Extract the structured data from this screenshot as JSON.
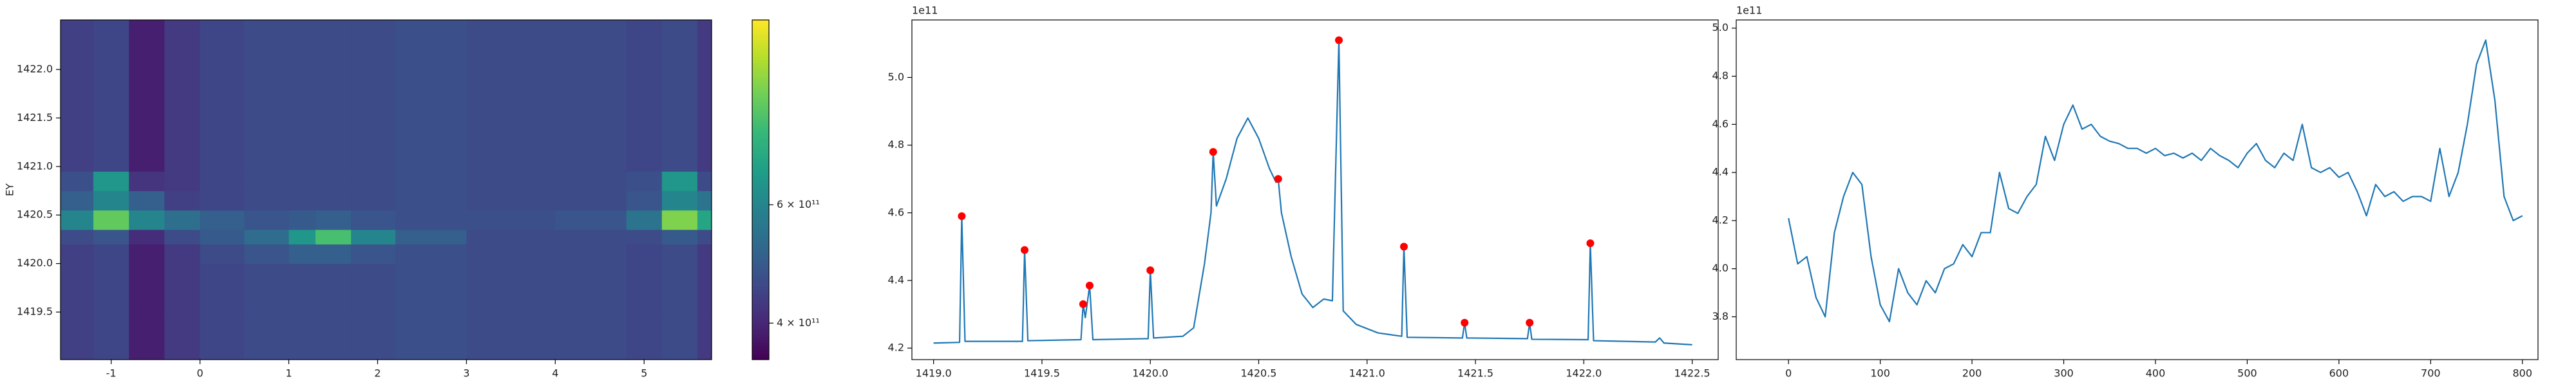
{
  "chart_data": [
    {
      "type": "heatmap",
      "ylabel": "EY",
      "xlim": [
        -1.57,
        5.76
      ],
      "ylim": [
        1419.01,
        1422.51
      ],
      "xticks": [
        -1,
        0,
        1,
        2,
        3,
        4,
        5
      ],
      "yticks": [
        1419.5,
        {
          "value": 1420,
          "label": "1420.0"
        },
        1420.5,
        {
          "value": 1421,
          "label": "1421.0"
        },
        1421.5,
        {
          "value": 1422,
          "label": "1422.0"
        }
      ],
      "x_edges": [
        -1.57,
        -1.2,
        -0.8,
        -0.4,
        0,
        0.5,
        1.0,
        1.3,
        1.7,
        2.2,
        3,
        4,
        4.8,
        5.2,
        5.6,
        5.76
      ],
      "y_edges": [
        1419.01,
        1419.5,
        1420.0,
        1420.2,
        1420.35,
        1420.55,
        1420.75,
        1420.95,
        1421.5,
        1422.0,
        1422.51
      ],
      "z": [
        [
          440000000000.0,
          450000000000.0,
          390000000000.0,
          430000000000.0,
          450000000000.0,
          460000000000.0,
          460000000000.0,
          460000000000.0,
          460000000000.0,
          470000000000.0,
          460000000000.0,
          460000000000.0,
          450000000000.0,
          460000000000.0,
          430000000000.0
        ],
        [
          440000000000.0,
          450000000000.0,
          390000000000.0,
          430000000000.0,
          450000000000.0,
          460000000000.0,
          460000000000.0,
          460000000000.0,
          460000000000.0,
          470000000000.0,
          460000000000.0,
          460000000000.0,
          450000000000.0,
          460000000000.0,
          430000000000.0
        ],
        [
          440000000000.0,
          450000000000.0,
          390000000000.0,
          430000000000.0,
          460000000000.0,
          480000000000.0,
          500000000000.0,
          500000000000.0,
          480000000000.0,
          470000000000.0,
          460000000000.0,
          460000000000.0,
          450000000000.0,
          460000000000.0,
          430000000000.0
        ],
        [
          460000000000.0,
          480000000000.0,
          410000000000.0,
          460000000000.0,
          490000000000.0,
          530000000000.0,
          650000000000.0,
          800000000000.0,
          600000000000.0,
          500000000000.0,
          460000000000.0,
          460000000000.0,
          460000000000.0,
          490000000000.0,
          460000000000.0
        ],
        [
          600000000000.0,
          850000000000.0,
          600000000000.0,
          540000000000.0,
          500000000000.0,
          480000000000.0,
          490000000000.0,
          500000000000.0,
          480000000000.0,
          470000000000.0,
          470000000000.0,
          480000000000.0,
          550000000000.0,
          900000000000.0,
          700000000000.0
        ],
        [
          500000000000.0,
          600000000000.0,
          500000000000.0,
          440000000000.0,
          450000000000.0,
          460000000000.0,
          460000000000.0,
          460000000000.0,
          460000000000.0,
          470000000000.0,
          460000000000.0,
          460000000000.0,
          480000000000.0,
          600000000000.0,
          550000000000.0
        ],
        [
          470000000000.0,
          650000000000.0,
          420000000000.0,
          430000000000.0,
          450000000000.0,
          460000000000.0,
          460000000000.0,
          460000000000.0,
          460000000000.0,
          470000000000.0,
          460000000000.0,
          460000000000.0,
          470000000000.0,
          650000000000.0,
          460000000000.0
        ],
        [
          440000000000.0,
          450000000000.0,
          390000000000.0,
          430000000000.0,
          450000000000.0,
          460000000000.0,
          460000000000.0,
          460000000000.0,
          460000000000.0,
          470000000000.0,
          460000000000.0,
          460000000000.0,
          450000000000.0,
          460000000000.0,
          430000000000.0
        ],
        [
          440000000000.0,
          450000000000.0,
          390000000000.0,
          430000000000.0,
          450000000000.0,
          460000000000.0,
          460000000000.0,
          460000000000.0,
          460000000000.0,
          470000000000.0,
          460000000000.0,
          460000000000.0,
          450000000000.0,
          460000000000.0,
          430000000000.0
        ],
        [
          440000000000.0,
          450000000000.0,
          390000000000.0,
          430000000000.0,
          450000000000.0,
          460000000000.0,
          460000000000.0,
          460000000000.0,
          460000000000.0,
          470000000000.0,
          460000000000.0,
          460000000000.0,
          450000000000.0,
          460000000000.0,
          430000000000.0
        ]
      ],
      "colorbar": {
        "scale": "log",
        "colormap": "viridis",
        "clim": [
          353000000000.0,
          1130000000000.0
        ],
        "ticks": [
          {
            "value": 400000000000.0,
            "label": "4 × 10¹¹"
          },
          {
            "value": 600000000000.0,
            "label": "6 × 10¹¹"
          }
        ]
      }
    },
    {
      "type": "line",
      "offset_label": "1e11",
      "xlim": [
        1418.9,
        1422.62
      ],
      "ylim": [
        4.166,
        5.17
      ],
      "xticks": [
        {
          "value": 1419,
          "label": "1419.0"
        },
        1419.5,
        {
          "value": 1420,
          "label": "1420.0"
        },
        1420.5,
        {
          "value": 1421,
          "label": "1421.0"
        },
        1421.5,
        {
          "value": 1422,
          "label": "1422.0"
        },
        1422.5
      ],
      "yticks": [
        4.2,
        4.4,
        4.6,
        4.8,
        {
          "value": 5,
          "label": "5.0"
        }
      ],
      "series": [
        {
          "mode": "line",
          "color": "#1f77b4",
          "x": [
            1419.0,
            1419.12,
            1419.13,
            1419.145,
            1419.41,
            1419.42,
            1419.435,
            1419.68,
            1419.69,
            1419.7,
            1419.72,
            1419.735,
            1419.99,
            1420.0,
            1420.015,
            1420.15,
            1420.2,
            1420.25,
            1420.28,
            1420.29,
            1420.305,
            1420.35,
            1420.4,
            1420.45,
            1420.5,
            1420.55,
            1420.58,
            1420.59,
            1420.605,
            1420.65,
            1420.7,
            1420.75,
            1420.8,
            1420.84,
            1420.87,
            1420.89,
            1420.95,
            1421.05,
            1421.16,
            1421.17,
            1421.185,
            1421.44,
            1421.45,
            1421.46,
            1421.74,
            1421.75,
            1421.76,
            1422.02,
            1422.03,
            1422.045,
            1422.33,
            1422.35,
            1422.37,
            1422.5
          ],
          "values": [
            4.215,
            4.217,
            4.59,
            4.22,
            4.22,
            4.49,
            4.222,
            4.225,
            4.33,
            4.29,
            4.385,
            4.225,
            4.228,
            4.43,
            4.23,
            4.235,
            4.26,
            4.45,
            4.6,
            4.78,
            4.62,
            4.7,
            4.82,
            4.88,
            4.82,
            4.73,
            4.69,
            4.7,
            4.6,
            4.47,
            4.36,
            4.32,
            4.345,
            4.34,
            5.11,
            4.31,
            4.27,
            4.245,
            4.235,
            4.5,
            4.232,
            4.23,
            4.275,
            4.23,
            4.228,
            4.275,
            4.226,
            4.225,
            4.51,
            4.222,
            4.218,
            4.23,
            4.215,
            4.21
          ]
        },
        {
          "mode": "markers",
          "color": "#ff0000",
          "x": [
            1419.13,
            1419.42,
            1419.69,
            1419.72,
            1420.0,
            1420.29,
            1420.59,
            1420.87,
            1421.17,
            1421.45,
            1421.75,
            1422.03
          ],
          "values": [
            4.59,
            4.49,
            4.33,
            4.385,
            4.43,
            4.78,
            4.7,
            5.11,
            4.5,
            4.275,
            4.275,
            4.51
          ]
        }
      ]
    },
    {
      "type": "line",
      "offset_label": "1e11",
      "xlim": [
        -57,
        817
      ],
      "ylim": [
        3.622,
        5.034
      ],
      "xticks": [
        0,
        100,
        200,
        300,
        400,
        500,
        600,
        700,
        800
      ],
      "yticks": [
        3.8,
        {
          "value": 4,
          "label": "4.0"
        },
        4.2,
        4.4,
        4.6,
        4.8,
        {
          "value": 5,
          "label": "5.0"
        }
      ],
      "series": [
        {
          "mode": "line",
          "color": "#1f77b4",
          "x": [
            0,
            10,
            20,
            30,
            40,
            50,
            60,
            70,
            80,
            90,
            100,
            110,
            120,
            130,
            140,
            150,
            160,
            170,
            180,
            190,
            200,
            210,
            220,
            230,
            240,
            250,
            260,
            270,
            280,
            290,
            300,
            310,
            320,
            330,
            340,
            350,
            360,
            370,
            380,
            390,
            400,
            410,
            420,
            430,
            440,
            450,
            460,
            470,
            480,
            490,
            500,
            510,
            520,
            530,
            540,
            550,
            560,
            570,
            580,
            590,
            600,
            610,
            620,
            630,
            640,
            650,
            660,
            670,
            680,
            690,
            700,
            710,
            720,
            730,
            740,
            750,
            760,
            770,
            780,
            790,
            800
          ],
          "values": [
            4.21,
            4.02,
            4.05,
            3.88,
            3.8,
            4.15,
            4.3,
            4.4,
            4.35,
            4.05,
            3.85,
            3.78,
            4.0,
            3.9,
            3.85,
            3.95,
            3.9,
            4.0,
            4.02,
            4.1,
            4.05,
            4.15,
            4.15,
            4.4,
            4.25,
            4.23,
            4.3,
            4.35,
            4.55,
            4.45,
            4.6,
            4.68,
            4.58,
            4.6,
            4.55,
            4.53,
            4.52,
            4.5,
            4.5,
            4.48,
            4.5,
            4.47,
            4.48,
            4.46,
            4.48,
            4.45,
            4.5,
            4.47,
            4.45,
            4.42,
            4.48,
            4.52,
            4.45,
            4.42,
            4.48,
            4.45,
            4.6,
            4.42,
            4.4,
            4.42,
            4.38,
            4.4,
            4.32,
            4.22,
            4.35,
            4.3,
            4.32,
            4.28,
            4.3,
            4.3,
            4.28,
            4.5,
            4.3,
            4.4,
            4.6,
            4.85,
            4.95,
            4.7,
            4.3,
            4.2,
            4.22
          ]
        }
      ]
    }
  ]
}
